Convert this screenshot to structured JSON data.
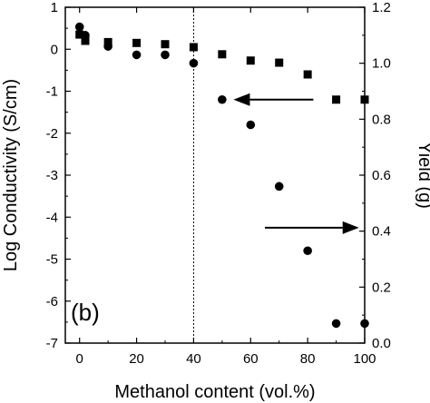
{
  "chart_data": {
    "type": "scatter",
    "panel_label": "(b)",
    "xlabel": "Methanol content (vol.%)",
    "ylabel_left": "Log Conductivity (S/cm)",
    "ylabel_right": "Yield (g)",
    "xlim": [
      -5,
      100
    ],
    "ylim_left": [
      -7,
      1
    ],
    "ylim_right": [
      0,
      1.2
    ],
    "x_ticks": [
      0,
      20,
      40,
      60,
      80,
      100
    ],
    "y_left_ticks": [
      1,
      0,
      -1,
      -2,
      -3,
      -4,
      -5,
      -6,
      -7
    ],
    "y_right_ticks": [
      0.0,
      0.2,
      0.4,
      0.6,
      0.8,
      1.0,
      1.2
    ],
    "x_tick_labels": [
      "0",
      "20",
      "40",
      "60",
      "80",
      "100"
    ],
    "y_left_tick_labels": [
      "1",
      "0",
      "-1",
      "-2",
      "-3",
      "-4",
      "-5",
      "-6",
      "-7"
    ],
    "y_right_tick_labels": [
      "0.0",
      "0.2",
      "0.4",
      "0.6",
      "0.8",
      "1.0",
      "1.2"
    ],
    "reference_line_x": 40,
    "series": [
      {
        "marker": "square",
        "axis": "left",
        "x": [
          0,
          2,
          10,
          20,
          30,
          40,
          50,
          60,
          70,
          80,
          90,
          100
        ],
        "y": [
          0.35,
          0.2,
          0.17,
          0.15,
          0.12,
          0.05,
          -0.12,
          -0.27,
          -0.32,
          -0.6,
          -1.2,
          -1.2
        ]
      },
      {
        "marker": "circle",
        "axis": "right",
        "x": [
          0,
          2,
          10,
          20,
          30,
          40,
          50,
          60,
          70,
          80,
          90,
          100
        ],
        "y": [
          1.13,
          1.1,
          1.06,
          1.03,
          1.03,
          1.0,
          0.87,
          0.78,
          0.56,
          0.33,
          0.07,
          0.07
        ]
      }
    ],
    "arrows": [
      {
        "direction": "left",
        "points_to_axis": "left",
        "x_from": 82,
        "x_to": 54,
        "y_left": -1.2
      },
      {
        "direction": "right",
        "points_to_axis": "right",
        "x_from": 65,
        "x_to": 98,
        "y_left": -4.25
      }
    ]
  }
}
